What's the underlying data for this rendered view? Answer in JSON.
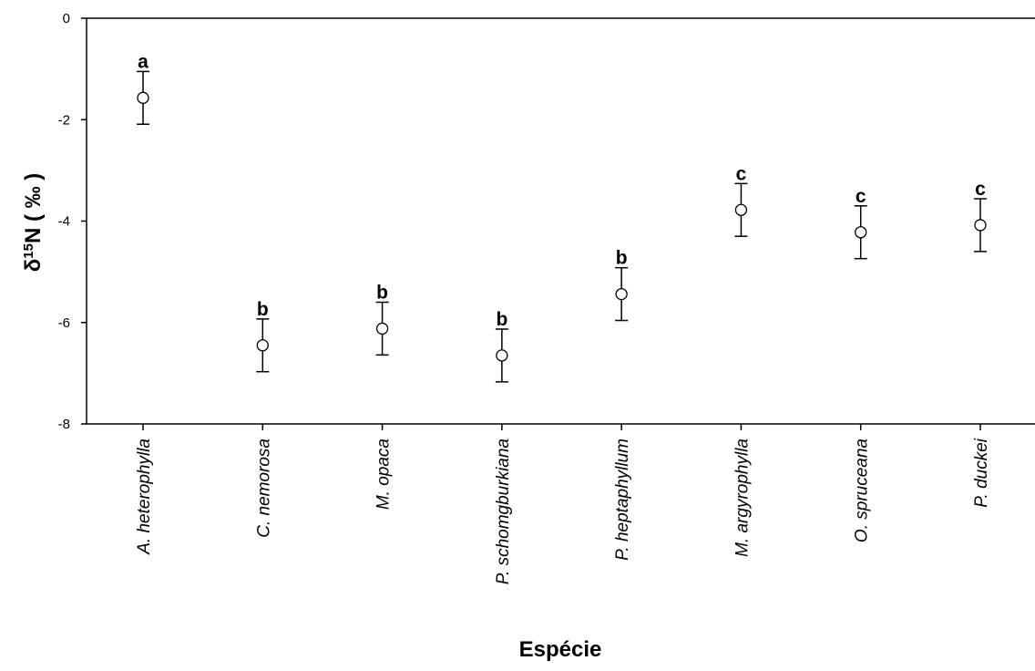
{
  "chart_data": {
    "type": "scatter",
    "xlabel": "Espécie",
    "ylabel": {
      "prefix": "δ",
      "superscript": "15",
      "suffix": "N ( ‰ )"
    },
    "ylim": [
      -8,
      0
    ],
    "yticks": [
      0,
      -2,
      -4,
      -6,
      -8
    ],
    "grid": false,
    "categories": [
      "A. heterophylla",
      "C. nemorosa",
      "M. opaca",
      "P. schomgburkiana",
      "P. heptaphyllum",
      "M. argyrophylla",
      "O. spruceana",
      "P. duckei"
    ],
    "series": [
      {
        "values": [
          -1.57,
          -6.45,
          -6.12,
          -6.65,
          -5.44,
          -3.78,
          -4.22,
          -4.08
        ],
        "error": [
          0.52,
          0.52,
          0.52,
          0.52,
          0.52,
          0.52,
          0.52,
          0.52
        ]
      }
    ],
    "annotations": [
      "a",
      "b",
      "b",
      "b",
      "b",
      "c",
      "c",
      "c"
    ]
  }
}
